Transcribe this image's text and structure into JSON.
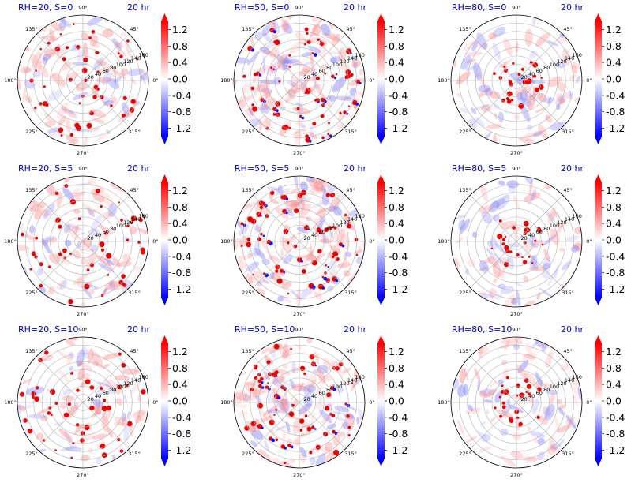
{
  "chart_data": {
    "type": "heatmap",
    "projection": "polar",
    "grid": "on",
    "colormap": "bwr",
    "colorbar_extend": "both",
    "theta_tick_labels": [
      "0°",
      "45°",
      "90°",
      "135°",
      "180°",
      "225°",
      "270°",
      "315°"
    ],
    "radial_tick_labels": [
      "20",
      "40",
      "60",
      "80",
      "100",
      "120",
      "140",
      "160"
    ],
    "radial_range": [
      0,
      160
    ],
    "colorbar": {
      "range": [
        -1.4,
        1.4
      ],
      "ticks": [
        "1.2",
        "0.8",
        "0.4",
        "0.0",
        "-0.4",
        "-0.8",
        "-1.2"
      ],
      "tick_values": [
        1.2,
        0.8,
        0.4,
        0.0,
        -0.4,
        -0.8,
        -1.2
      ]
    },
    "panels": [
      {
        "title": "RH=20, S=0",
        "time": "20 hr"
      },
      {
        "title": "RH=50, S=0",
        "time": "20 hr"
      },
      {
        "title": "RH=80, S=0",
        "time": "20 hr"
      },
      {
        "title": "RH=20, S=5",
        "time": "20 hr"
      },
      {
        "title": "RH=50, S=5",
        "time": "20 hr"
      },
      {
        "title": "RH=80, S=5",
        "time": "20 hr"
      },
      {
        "title": "RH=20, S=10",
        "time": "20 hr"
      },
      {
        "title": "RH=50, S=10",
        "time": "20 hr"
      },
      {
        "title": "RH=80, S=10",
        "time": "20 hr"
      }
    ]
  },
  "colors": {
    "title": "#0000cc",
    "max": "#ff0000",
    "min": "#0000ff",
    "grid": "#b0b0b0"
  }
}
